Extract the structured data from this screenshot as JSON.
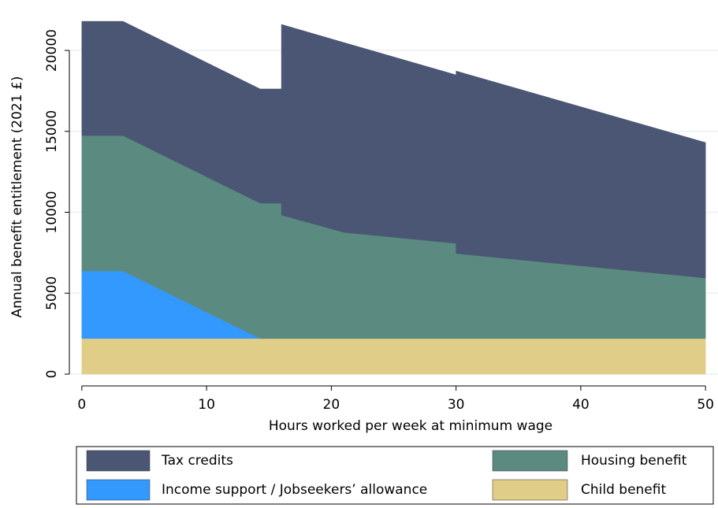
{
  "chart_data": {
    "type": "stacked_area",
    "x_label": "Hours worked per week at minimum wage",
    "y_label": "Annual benefit entitlement (2021 £)",
    "x": [
      0,
      3.3,
      14.3,
      16,
      16,
      21,
      30,
      30,
      50
    ],
    "series": [
      {
        "name": "Child benefit",
        "color": "#e0cd87",
        "values": [
          2200,
          2200,
          2200,
          2200,
          2200,
          2200,
          2200,
          2200,
          2200
        ]
      },
      {
        "name": "Income support / Jobseekers’ allowance",
        "color": "#3399ff",
        "values": [
          4170,
          4170,
          0,
          0,
          0,
          0,
          0,
          0,
          0
        ]
      },
      {
        "name": "Housing benefit",
        "color": "#5a8a80",
        "values": [
          8370,
          8370,
          8360,
          8360,
          7630,
          6560,
          5880,
          5250,
          3740
        ]
      },
      {
        "name": "Tax credits",
        "color": "#4a5673",
        "values": [
          7060,
          7060,
          7060,
          7060,
          11780,
          11730,
          10410,
          11280,
          8370
        ]
      }
    ],
    "xlim": [
      -1,
      51
    ],
    "xticks": [
      0,
      10,
      20,
      30,
      40,
      50
    ],
    "ylim": [
      -730,
      22630
    ],
    "yticks": [
      0,
      5000,
      10000,
      15000,
      20000
    ],
    "grid": true
  }
}
